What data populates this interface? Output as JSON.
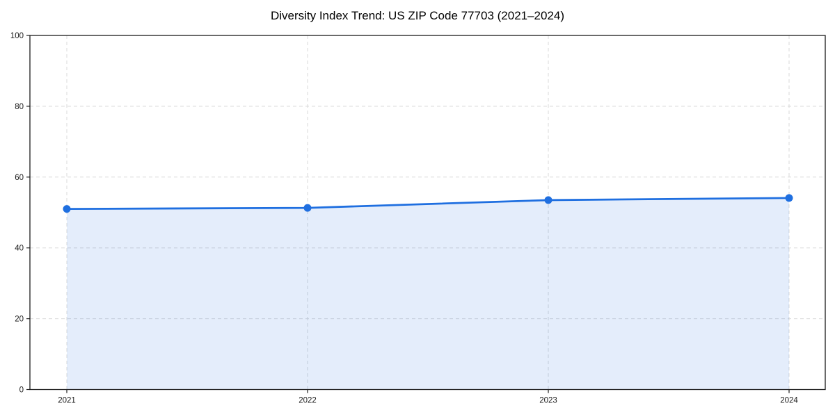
{
  "chart_data": {
    "type": "line",
    "title": "Diversity Index Trend: US ZIP Code 77703 (2021–2024)",
    "x": [
      2021,
      2022,
      2023,
      2024
    ],
    "xticks": [
      2021,
      2022,
      2023,
      2024
    ],
    "series": [
      {
        "name": "Diversity Index",
        "values": [
          51.0,
          51.3,
          53.5,
          54.1
        ]
      }
    ],
    "xlabel": "",
    "ylabel": "",
    "ylim": [
      0,
      100
    ],
    "yticks": [
      0,
      20,
      40,
      60,
      80,
      100
    ],
    "grid": "dashed-both-axes",
    "legend": "none",
    "marker": "circle",
    "area_fill": true,
    "area_alpha": 0.12,
    "colors": {
      "line": "#1f6fe0",
      "marker": "#1f6fe0",
      "area": "#1f6fe0",
      "grid": "#d8d8d8",
      "axis": "#1a1a1a",
      "tick_label": "#1a1a1a",
      "title": "#000000",
      "background": "#ffffff"
    }
  }
}
